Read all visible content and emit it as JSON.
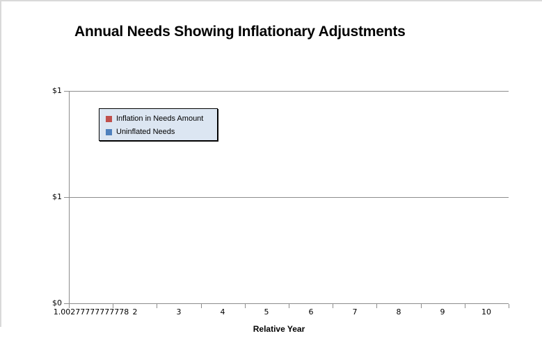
{
  "chart": {
    "title": "Annual Needs Showing Inflationary Adjustments",
    "y_axis": {
      "tick_labels": [
        "$1",
        "$1",
        "$0"
      ]
    },
    "x_axis": {
      "title": "Relative Year",
      "tick_labels": [
        "1.00277777777778",
        "2",
        "3",
        "4",
        "5",
        "6",
        "7",
        "8",
        "9",
        "10"
      ]
    },
    "legend": {
      "background": "#dce6f2",
      "border_color": "#000000",
      "items": [
        {
          "label": "Inflation in Needs Amount",
          "color": "#c0504d"
        },
        {
          "label": "Uninflated Needs",
          "color": "#4f81bd"
        }
      ]
    }
  },
  "chart_data": {
    "type": "bar",
    "title": "Annual Needs Showing Inflationary Adjustments",
    "xlabel": "Relative Year",
    "ylabel": "",
    "categories": [
      "1.00277777777778",
      "2",
      "3",
      "4",
      "5",
      "6",
      "7",
      "8",
      "9",
      "10"
    ],
    "series": [
      {
        "name": "Inflation in Needs Amount",
        "color": "#c0504d",
        "values": []
      },
      {
        "name": "Uninflated Needs",
        "color": "#4f81bd",
        "values": []
      }
    ],
    "ylim": [
      0,
      1
    ],
    "y_tick_labels_top_to_bottom": [
      "$1",
      "$1",
      "$0"
    ],
    "grid": true,
    "legend_position": "inside-upper-left",
    "plot_area_empty": true
  }
}
